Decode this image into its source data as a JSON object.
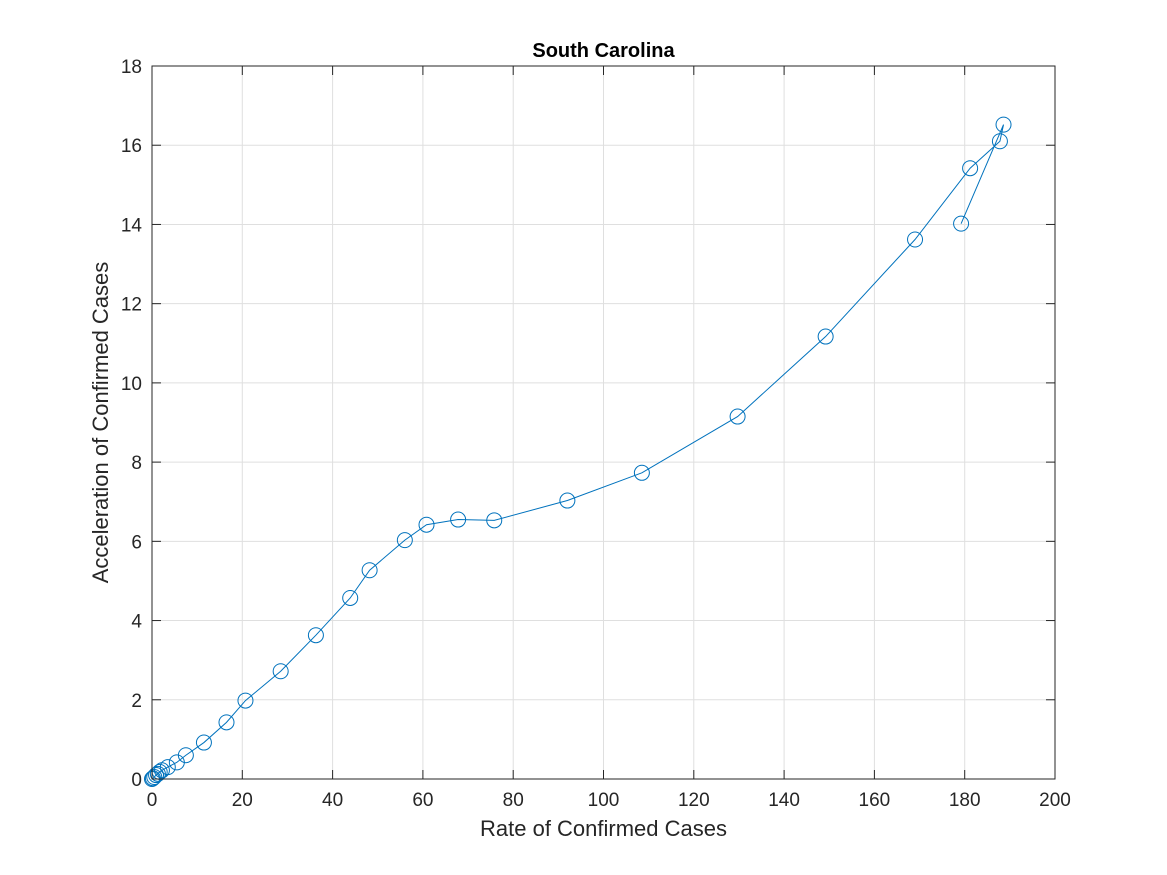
{
  "chart_data": {
    "type": "line",
    "title": "South Carolina",
    "xlabel": "Rate of Confirmed Cases",
    "ylabel": "Acceleration of Confirmed Cases",
    "xlim": [
      0,
      200
    ],
    "ylim": [
      0,
      18
    ],
    "xticks": [
      0,
      20,
      40,
      60,
      80,
      100,
      120,
      140,
      160,
      180,
      200
    ],
    "yticks": [
      0,
      2,
      4,
      6,
      8,
      10,
      12,
      14,
      16,
      18
    ],
    "grid": true,
    "marker": "circle",
    "series": [
      {
        "color": "#0072BD",
        "x": [
          0,
          0.2,
          0.5,
          0.9,
          1.3,
          1.7,
          2.2,
          3.5,
          5.5,
          7.5,
          11.5,
          16.5,
          20.7,
          28.5,
          36.3,
          43.9,
          48.2,
          56,
          60.8,
          67.8,
          75.8,
          92,
          108.5,
          129.7,
          149.2,
          169,
          181.2,
          187.8,
          188.6,
          179.2
        ],
        "y": [
          0,
          0.02,
          0.05,
          0.1,
          0.13,
          0.18,
          0.22,
          0.3,
          0.42,
          0.6,
          0.92,
          1.43,
          1.98,
          2.72,
          3.63,
          4.57,
          5.27,
          6.03,
          6.42,
          6.55,
          6.53,
          7.03,
          7.73,
          9.15,
          11.17,
          13.62,
          15.42,
          16.1,
          16.52,
          14.02
        ]
      }
    ]
  }
}
